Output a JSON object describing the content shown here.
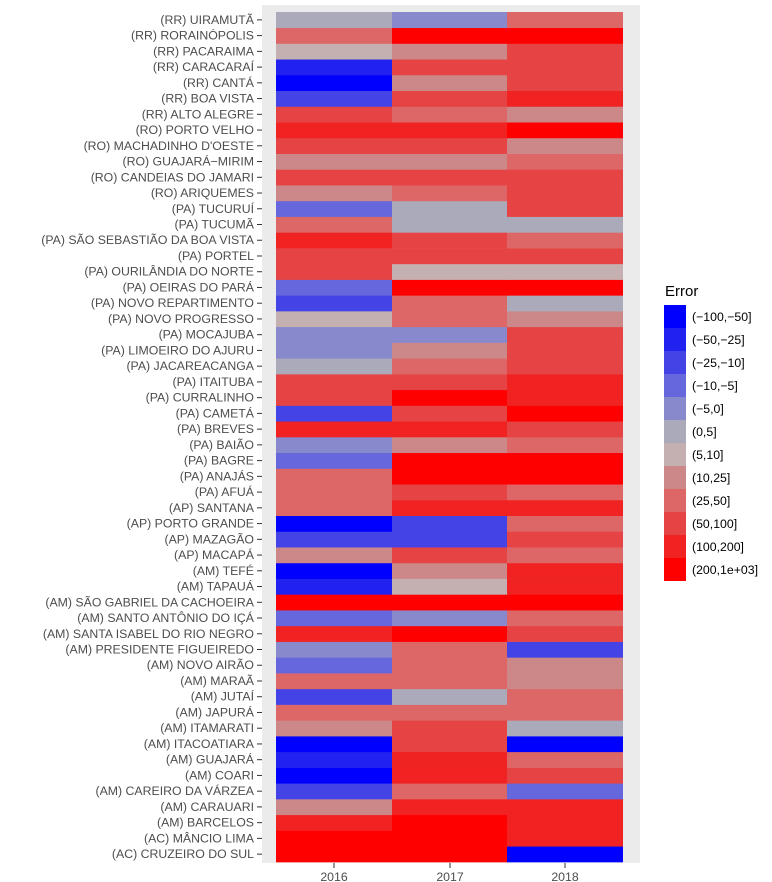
{
  "chart_data": {
    "type": "heatmap",
    "x": [
      "2016",
      "2017",
      "2018"
    ],
    "y": [
      "(AC) CRUZEIRO DO SUL",
      "(AC) MÂNCIO LIMA",
      "(AM) BARCELOS",
      "(AM) CARAUARI",
      "(AM) CAREIRO DA VÁRZEA",
      "(AM) COARI",
      "(AM) GUAJARÁ",
      "(AM) ITACOATIARA",
      "(AM) ITAMARATI",
      "(AM) JAPURÁ",
      "(AM) JUTAÍ",
      "(AM) MARAÃ",
      "(AM) NOVO AIRÃO",
      "(AM) PRESIDENTE FIGUEIREDO",
      "(AM) SANTA ISABEL DO RIO NEGRO",
      "(AM) SANTO ANTÔNIO DO IÇÁ",
      "(AM) SÃO GABRIEL DA CACHOEIRA",
      "(AM) TAPAUÁ",
      "(AM) TEFÉ",
      "(AP) MACAPÁ",
      "(AP) MAZAGÃO",
      "(AP) PORTO GRANDE",
      "(AP) SANTANA",
      "(PA) AFUÁ",
      "(PA) ANAJÁS",
      "(PA) BAGRE",
      "(PA) BAIÃO",
      "(PA) BREVES",
      "(PA) CAMETÁ",
      "(PA) CURRALINHO",
      "(PA) ITAITUBA",
      "(PA) JACAREACANGA",
      "(PA) LIMOEIRO DO AJURU",
      "(PA) MOCAJUBA",
      "(PA) NOVO PROGRESSO",
      "(PA) NOVO REPARTIMENTO",
      "(PA) OEIRAS DO PARÁ",
      "(PA) OURILÂNDIA DO NORTE",
      "(PA) PORTEL",
      "(PA) SÃO SEBASTIÃO DA BOA VISTA",
      "(PA) TUCUMÃ",
      "(PA) TUCURUÍ",
      "(RO) ARIQUEMES",
      "(RO) CANDEIAS DO JAMARI",
      "(RO) GUAJARÁ−MIRIM",
      "(RO) MACHADINHO D'OESTE",
      "(RO) PORTO VELHO",
      "(RR) ALTO ALEGRE",
      "(RR) BOA VISTA",
      "(RR) CANTÁ",
      "(RR) CARACARAÍ",
      "(RR) PACARAIMA",
      "(RR) RORAINÓPOLIS",
      "(RR) UIRAMUTÃ"
    ],
    "bins": [
      "(−100,−50]",
      "(−50,−25]",
      "(−25,−10]",
      "(−10,−5]",
      "(−5,0]",
      "(0,5]",
      "(5,10]",
      "(10,25]",
      "(25,50]",
      "(50,100]",
      "(100,200]",
      "(200,1e+03]"
    ],
    "colors": [
      "#0000ff",
      "#2222f0",
      "#4444e6",
      "#6666dd",
      "#8888cc",
      "#aaaabb",
      "#c4b0b0",
      "#cc8888",
      "#dd6666",
      "#e64444",
      "#f02222",
      "#ff0000"
    ],
    "values": [
      [
        11,
        11,
        0
      ],
      [
        11,
        11,
        10
      ],
      [
        10,
        11,
        10
      ],
      [
        7,
        10,
        10
      ],
      [
        2,
        8,
        3
      ],
      [
        0,
        10,
        9
      ],
      [
        1,
        10,
        8
      ],
      [
        0,
        9,
        0
      ],
      [
        7,
        9,
        5
      ],
      [
        8,
        8,
        8
      ],
      [
        2,
        5,
        8
      ],
      [
        8,
        8,
        7
      ],
      [
        3,
        8,
        7
      ],
      [
        4,
        8,
        2
      ],
      [
        10,
        11,
        9
      ],
      [
        3,
        4,
        8
      ],
      [
        11,
        11,
        11
      ],
      [
        1,
        6,
        10
      ],
      [
        0,
        7,
        10
      ],
      [
        7,
        9,
        8
      ],
      [
        2,
        2,
        9
      ],
      [
        0,
        2,
        8
      ],
      [
        8,
        10,
        10
      ],
      [
        8,
        9,
        8
      ],
      [
        8,
        11,
        11
      ],
      [
        3,
        11,
        11
      ],
      [
        4,
        7,
        8
      ],
      [
        10,
        10,
        9
      ],
      [
        2,
        9,
        11
      ],
      [
        9,
        11,
        10
      ],
      [
        9,
        9,
        10
      ],
      [
        5,
        8,
        9
      ],
      [
        4,
        7,
        9
      ],
      [
        4,
        4,
        9
      ],
      [
        6,
        8,
        7
      ],
      [
        2,
        8,
        5
      ],
      [
        3,
        11,
        11
      ],
      [
        9,
        6,
        6
      ],
      [
        9,
        9,
        9
      ],
      [
        10,
        9,
        8
      ],
      [
        8,
        5,
        5
      ],
      [
        3,
        5,
        9
      ],
      [
        7,
        8,
        9
      ],
      [
        9,
        9,
        9
      ],
      [
        7,
        7,
        8
      ],
      [
        9,
        9,
        7
      ],
      [
        10,
        10,
        11
      ],
      [
        9,
        8,
        7
      ],
      [
        2,
        9,
        10
      ],
      [
        0,
        7,
        9
      ],
      [
        1,
        9,
        9
      ],
      [
        6,
        7,
        9
      ],
      [
        8,
        11,
        11
      ],
      [
        5,
        4,
        8
      ]
    ],
    "legend_title": "Error",
    "legend_position": "right",
    "grid": true
  }
}
